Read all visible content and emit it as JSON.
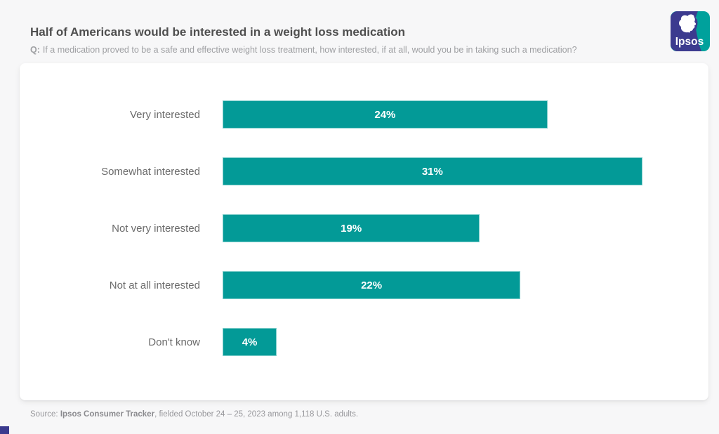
{
  "header": {
    "title": "Half of Americans would be interested in a weight loss medication",
    "subtitle_prefix": "Q:",
    "subtitle_text": "If a medication proved to be a safe and effective weight loss treatment, how interested, if at all, would you be in taking such a medication?",
    "logo_text": "Ipsos"
  },
  "chart_data": {
    "type": "bar",
    "orientation": "horizontal",
    "title": "Half of Americans would be interested in a weight loss medication",
    "categories": [
      "Very interested",
      "Somewhat interested",
      "Not very interested",
      "Not at all interested",
      "Don't know"
    ],
    "values": [
      24,
      31,
      19,
      22,
      4
    ],
    "value_labels": [
      "24%",
      "31%",
      "19%",
      "22%",
      "4%"
    ],
    "unit": "%",
    "xlim": [
      0,
      34.8
    ],
    "grid": false,
    "legend": false,
    "bar_color": "#039a97",
    "bar_border_color": "#83cfcc",
    "value_label_color": "#ffffff",
    "category_label_color": "#6b6b6b"
  },
  "footer": {
    "source_prefix": "Source: ",
    "source_bold": "Ipsos Consumer Tracker",
    "source_rest": ", fielded October 24 – 25, 2023 among 1,118 U.S. adults."
  },
  "colors": {
    "page_background": "#f7f7f8",
    "panel_background": "#ffffff",
    "logo_indigo": "#3c3b8f",
    "logo_teal": "#00a19c"
  }
}
